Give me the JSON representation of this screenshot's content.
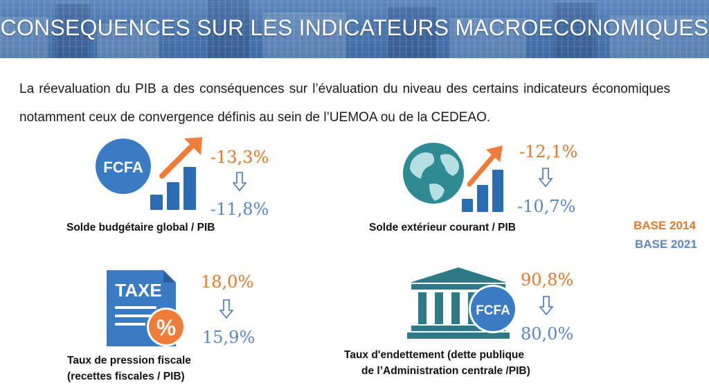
{
  "title": "CONSEQUENCES SUR LES INDICATEURS MACROECONOMIQUES",
  "intro": "La réevaluation du PIB a des conséquences sur l’évaluation du niveau des certains indicateurs économiques notamment ceux de convergence définis au sein de l’UEMOA ou de la CEDEAO.",
  "legend": {
    "base_old": "BASE 2014",
    "base_new": "BASE 2021"
  },
  "colors": {
    "base_old": "#e07a2c",
    "base_new": "#5b86c0",
    "banner": "#4a76ad"
  },
  "indicators": [
    {
      "label": "Solde budgétaire global / PIB",
      "value_2014": "-13,3%",
      "value_2021": "-11,8%",
      "icon": "fcfa-growth-chart-icon",
      "icon_text": "FCFA"
    },
    {
      "label": "Solde extérieur courant / PIB",
      "value_2014": "-12,1%",
      "value_2021": "-10,7%",
      "icon": "globe-growth-chart-icon"
    },
    {
      "label_line1": "Taux de pression fiscale",
      "label_line2": "(recettes fiscales / PIB)",
      "value_2014": "18,0%",
      "value_2021": "15,9%",
      "icon": "tax-document-icon",
      "icon_text": "TAXE",
      "badge_text": "%"
    },
    {
      "label_line1": "Taux d'endettement (dette publique",
      "label_line2": "de l’Administration centrale /PIB)",
      "value_2014": "90,8%",
      "value_2021": "80,0%",
      "icon": "bank-fcfa-icon",
      "icon_text": "FCFA"
    }
  ]
}
